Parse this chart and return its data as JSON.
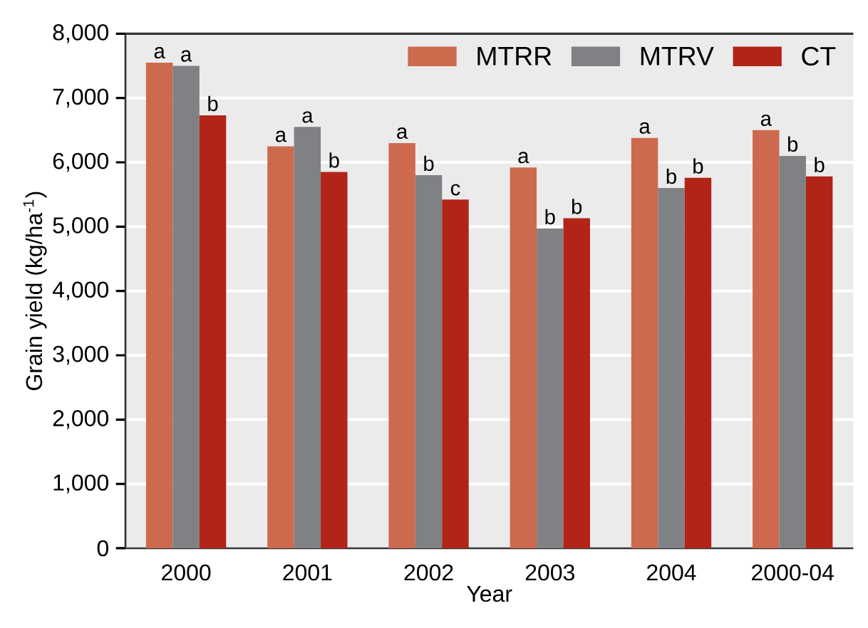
{
  "chart_data": {
    "type": "bar",
    "xlabel": "Year",
    "ylabel": "Grain yield (kg/ha$^{-1}$)",
    "categories": [
      "2000",
      "2001",
      "2002",
      "2003",
      "2004",
      "2000-04"
    ],
    "series": [
      {
        "name": "MTRR",
        "color": "#cd6a4e",
        "values": [
          7550,
          6250,
          6300,
          5920,
          6380,
          6500
        ],
        "value_labels": [
          "a",
          "a",
          "a",
          "a",
          "a",
          "a"
        ]
      },
      {
        "name": "MTRV",
        "color": "#808184",
        "values": [
          7500,
          6550,
          5800,
          4970,
          5600,
          6100
        ],
        "value_labels": [
          "a",
          "a",
          "b",
          "b",
          "b",
          "b"
        ]
      },
      {
        "name": "CT",
        "color": "#b22418",
        "values": [
          6730,
          5850,
          5420,
          5130,
          5760,
          5780
        ],
        "value_labels": [
          "b",
          "b",
          "c",
          "b",
          "b",
          "b"
        ]
      }
    ],
    "ylim": [
      0,
      8000
    ],
    "yticks": [
      0,
      {
        "value": 1000,
        "label": "1,000"
      },
      {
        "value": 2000,
        "label": "2,000"
      },
      {
        "value": 3000,
        "label": "3,000"
      },
      {
        "value": 4000,
        "label": "4,000"
      },
      {
        "value": 5000,
        "label": "5,000"
      },
      {
        "value": 6000,
        "label": "6,000"
      },
      {
        "value": 7000,
        "label": "7,000"
      },
      {
        "value": 8000,
        "label": "8,000"
      }
    ],
    "grid": "y",
    "legend": "top right"
  }
}
